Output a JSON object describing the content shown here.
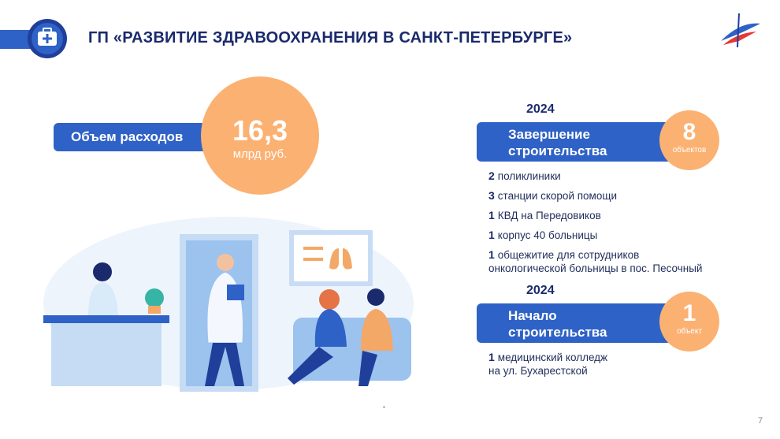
{
  "header": {
    "title": "ГП «РАЗВИТИЕ ЗДРАВООХРАНЕНИЯ В САНКТ-ПЕТЕРБУРГЕ»"
  },
  "expenses": {
    "label": "Объем расходов",
    "value": "16,3",
    "unit": "млрд руб."
  },
  "sections": [
    {
      "year": 2024,
      "title": [
        "Завершение",
        "строительства"
      ],
      "count": 8,
      "count_unit": "объектов",
      "items": [
        {
          "count": 2,
          "lines": [
            "поликлиники"
          ]
        },
        {
          "count": 3,
          "lines": [
            "станции скорой помощи"
          ]
        },
        {
          "count": 1,
          "lines": [
            "КВД на Передовиков"
          ]
        },
        {
          "count": 1,
          "lines": [
            "корпус 40 больницы"
          ]
        },
        {
          "count": 1,
          "lines": [
            "общежитие для сотрудников",
            "онкологической больницы в пос. Песочный"
          ]
        }
      ]
    },
    {
      "year": 2024,
      "title": [
        "Начало",
        "строительства"
      ],
      "count": 1,
      "count_unit": "объект",
      "items": [
        {
          "count": 1,
          "lines": [
            "медицинский колледж",
            "на ул. Бухарестской"
          ]
        }
      ]
    }
  ],
  "page_number": 7
}
